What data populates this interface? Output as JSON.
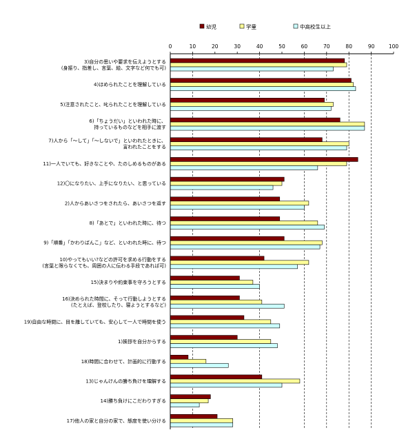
{
  "chart_data": {
    "type": "bar",
    "orientation": "horizontal",
    "title": "",
    "xlabel": "",
    "ylabel": "",
    "xlim": [
      0,
      100
    ],
    "x_ticks": [
      "0",
      "10",
      "20",
      "30",
      "40",
      "50",
      "60",
      "70",
      "80",
      "90",
      "100"
    ],
    "grid": "dashed vertical at 10, 40, 60, 70, 80, 90",
    "legend_position": "top-center",
    "categories": [
      [
        "3)自分の思いや要求を伝えようとする",
        "(身振り、指差し、言葉、絵、文字など何でも可)"
      ],
      [
        "4)ほめられたことを理解している"
      ],
      [
        "5)注意されたこと、叱られたことを理解している"
      ],
      [
        "6)「ちょうだい」といわれた時に、",
        "持っているものなどを相手に渡す"
      ],
      [
        "7)人から「〜して」「〜しないで」といわれたときに、",
        "言われたことをする"
      ],
      [
        "11)一人でいても、好きなことや、たのしめるものがある"
      ],
      [
        "12)〇になりたい、上手になりたい、と思っている"
      ],
      [
        "2)人からあいさつをされたら、あいさつを返す"
      ],
      [
        "8)「あとで」といわれた時に、待つ"
      ],
      [
        "9)「順番」「かわりばんこ」など、といわれた時に、待つ"
      ],
      [
        "10)やってもいい?などの許可を求める行動をする",
        "(言葉と限らなくても、周囲の人に伝わる手段であれば可)"
      ],
      [
        "15)決まりや約束事を守ろうとする"
      ],
      [
        "16)決められた時間に、そって行動しようとする",
        "(たとえば、登校したり、寝ようとするなど)"
      ],
      [
        "19)自由な時間に、目を離していても、安心して一人で時間を使う"
      ],
      [
        "1)挨拶を自分からする"
      ],
      [
        "18)時間に合わせて、計画的に行動する"
      ],
      [
        "13)じゃんけんの勝ち負けを理解する"
      ],
      [
        "14)勝ち負けにこだわりすぎる"
      ],
      [
        "17)他人の家と自分の家で、態度を使い分ける"
      ]
    ],
    "series": [
      {
        "name": "幼児",
        "color": "#800000",
        "values": [
          78,
          81,
          69,
          76,
          68,
          84,
          51,
          49,
          49,
          51,
          42,
          31,
          31,
          33,
          30,
          8,
          41,
          18,
          21
        ]
      },
      {
        "name": "学童",
        "color": "#ffff99",
        "values": [
          79,
          82,
          73,
          87,
          80,
          79,
          50,
          62,
          66,
          68,
          62,
          37,
          41,
          45,
          45,
          16,
          58,
          17,
          28
        ]
      },
      {
        "name": "中高校生以上",
        "color": "#ccffff",
        "values": [
          73,
          83,
          72,
          87,
          79,
          66,
          46,
          60,
          69,
          67,
          57,
          40,
          51,
          49,
          48,
          26,
          50,
          13,
          28
        ]
      }
    ]
  }
}
